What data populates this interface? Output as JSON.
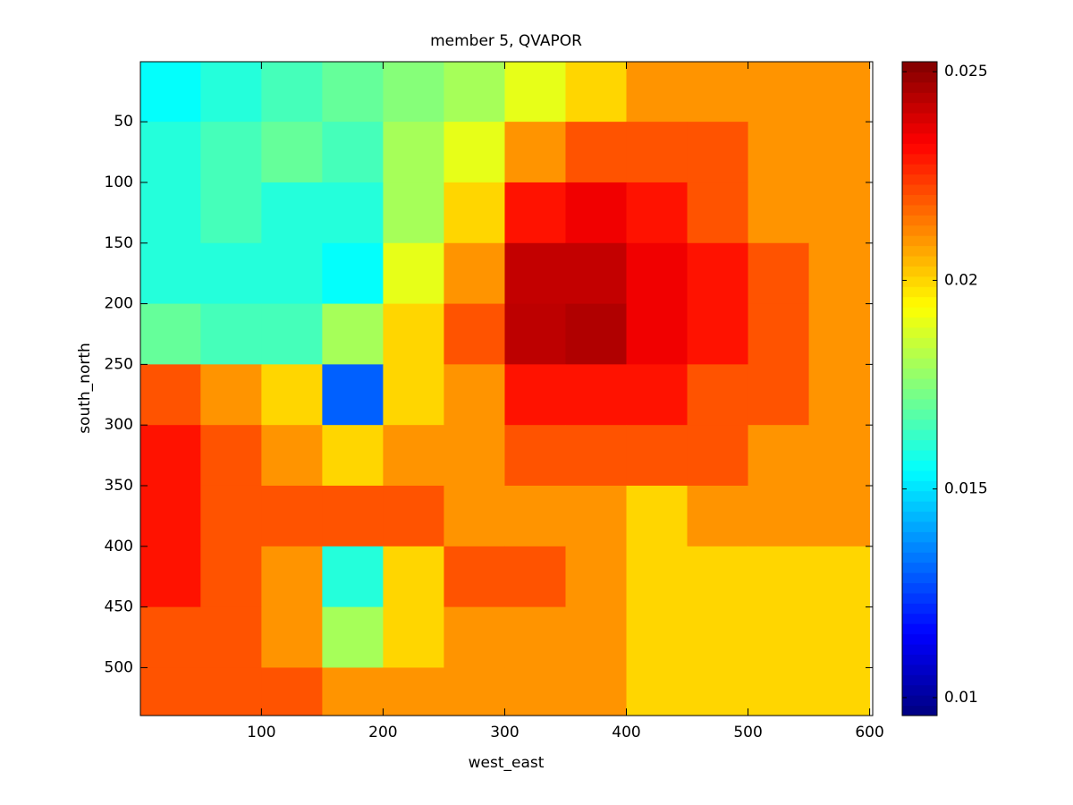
{
  "chart_data": {
    "type": "heatmap",
    "title": "member 5, QVAPOR",
    "x_label": "west_east",
    "y_label": "south_north",
    "colormap": "jet",
    "y_reversed": true,
    "x": [
      25,
      75,
      125,
      175,
      225,
      275,
      325,
      375,
      425,
      475,
      525,
      575
    ],
    "y": [
      25,
      75,
      125,
      175,
      225,
      275,
      325,
      375,
      425,
      475,
      525
    ],
    "z": [
      [
        0.0155,
        0.016,
        0.0165,
        0.017,
        0.0175,
        0.018,
        0.019,
        0.02,
        0.021,
        0.021,
        0.021,
        0.021
      ],
      [
        0.016,
        0.0165,
        0.017,
        0.0165,
        0.018,
        0.019,
        0.021,
        0.022,
        0.022,
        0.022,
        0.021,
        0.021
      ],
      [
        0.016,
        0.0165,
        0.016,
        0.016,
        0.018,
        0.02,
        0.023,
        0.0235,
        0.023,
        0.022,
        0.021,
        0.021
      ],
      [
        0.016,
        0.016,
        0.016,
        0.0155,
        0.019,
        0.021,
        0.0242,
        0.0242,
        0.0235,
        0.023,
        0.022,
        0.021
      ],
      [
        0.017,
        0.0165,
        0.0165,
        0.018,
        0.02,
        0.022,
        0.0243,
        0.0245,
        0.0235,
        0.023,
        0.022,
        0.021
      ],
      [
        0.022,
        0.021,
        0.02,
        0.013,
        0.02,
        0.021,
        0.023,
        0.023,
        0.023,
        0.022,
        0.022,
        0.021
      ],
      [
        0.023,
        0.022,
        0.021,
        0.02,
        0.021,
        0.021,
        0.022,
        0.022,
        0.022,
        0.022,
        0.021,
        0.021
      ],
      [
        0.023,
        0.022,
        0.022,
        0.022,
        0.022,
        0.021,
        0.021,
        0.021,
        0.02,
        0.021,
        0.021,
        0.021
      ],
      [
        0.023,
        0.022,
        0.021,
        0.016,
        0.02,
        0.022,
        0.022,
        0.021,
        0.02,
        0.02,
        0.02,
        0.02
      ],
      [
        0.022,
        0.022,
        0.021,
        0.018,
        0.02,
        0.021,
        0.021,
        0.021,
        0.02,
        0.02,
        0.02,
        0.02
      ],
      [
        0.022,
        0.022,
        0.022,
        0.021,
        0.021,
        0.021,
        0.021,
        0.021,
        0.02,
        0.02,
        0.02,
        0.02
      ]
    ],
    "xlim": [
      0.5,
      602.5
    ],
    "ylim": [
      0.5,
      539.5
    ],
    "xticks": [
      100,
      200,
      300,
      400,
      500,
      600
    ],
    "yticks": [
      50,
      100,
      150,
      200,
      250,
      300,
      350,
      400,
      450,
      500
    ],
    "clim": [
      0.00957,
      0.02524
    ],
    "cticks": [
      0.01,
      0.015,
      0.02,
      0.025
    ]
  }
}
